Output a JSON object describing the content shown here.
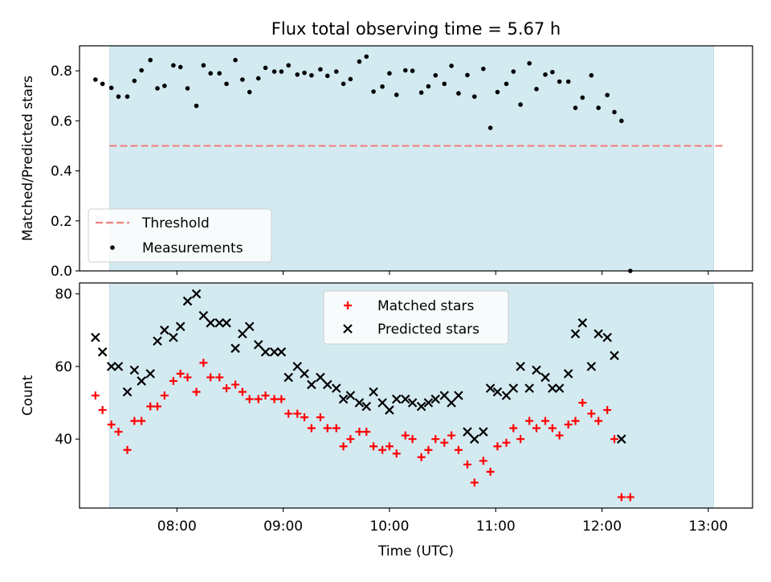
{
  "figure": {
    "title": "Flux total observing time = 5.67 h"
  },
  "colors": {
    "observing_band": "#d4eaf1",
    "threshold": "#f08080",
    "measurements": "#000000",
    "matched": "#ff0000",
    "predicted": "#000000"
  },
  "chart_data": [
    {
      "type": "scatter",
      "xlabel": "",
      "ylabel": "Matched/Predicted stars",
      "ylim": [
        0,
        0.9
      ],
      "yticks": [
        "0.0",
        "0.2",
        "0.4",
        "0.6",
        "0.8"
      ],
      "grid": false,
      "legend_position": "lower-left",
      "observing_window": [
        "07:22",
        "13:03"
      ],
      "threshold": {
        "name": "Threshold",
        "value": 0.5,
        "x_range": [
          "07:22",
          "13:08"
        ]
      },
      "series": [
        {
          "name": "Measurements",
          "marker": "dot",
          "points": [
            [
              "07:14",
              0.765
            ],
            [
              "07:18",
              0.748
            ],
            [
              "07:23",
              0.732
            ],
            [
              "07:27",
              0.697
            ],
            [
              "07:32",
              0.697
            ],
            [
              "07:36",
              0.76
            ],
            [
              "07:40",
              0.802
            ],
            [
              "07:45",
              0.843
            ],
            [
              "07:49",
              0.73
            ],
            [
              "07:53",
              0.74
            ],
            [
              "07:58",
              0.822
            ],
            [
              "08:02",
              0.815
            ],
            [
              "08:06",
              0.73
            ],
            [
              "08:11",
              0.66
            ],
            [
              "08:15",
              0.822
            ],
            [
              "08:19",
              0.79
            ],
            [
              "08:24",
              0.79
            ],
            [
              "08:28",
              0.748
            ],
            [
              "08:33",
              0.843
            ],
            [
              "08:37",
              0.765
            ],
            [
              "08:41",
              0.715
            ],
            [
              "08:46",
              0.77
            ],
            [
              "08:50",
              0.812
            ],
            [
              "08:55",
              0.797
            ],
            [
              "08:59",
              0.797
            ],
            [
              "09:03",
              0.822
            ],
            [
              "09:08",
              0.785
            ],
            [
              "09:12",
              0.792
            ],
            [
              "09:16",
              0.782
            ],
            [
              "09:21",
              0.806
            ],
            [
              "09:25",
              0.78
            ],
            [
              "09:30",
              0.797
            ],
            [
              "09:34",
              0.748
            ],
            [
              "09:38",
              0.767
            ],
            [
              "09:43",
              0.837
            ],
            [
              "09:47",
              0.857
            ],
            [
              "09:51",
              0.717
            ],
            [
              "09:56",
              0.737
            ],
            [
              "10:00",
              0.79
            ],
            [
              "10:04",
              0.704
            ],
            [
              "10:09",
              0.802
            ],
            [
              "10:13",
              0.8
            ],
            [
              "10:18",
              0.713
            ],
            [
              "10:22",
              0.738
            ],
            [
              "10:26",
              0.782
            ],
            [
              "10:31",
              0.748
            ],
            [
              "10:35",
              0.82
            ],
            [
              "10:39",
              0.71
            ],
            [
              "10:44",
              0.783
            ],
            [
              "10:48",
              0.697
            ],
            [
              "10:53",
              0.808
            ],
            [
              "10:57",
              0.572
            ],
            [
              "11:01",
              0.715
            ],
            [
              "11:06",
              0.748
            ],
            [
              "11:10",
              0.797
            ],
            [
              "11:14",
              0.665
            ],
            [
              "11:19",
              0.83
            ],
            [
              "11:23",
              0.727
            ],
            [
              "11:28",
              0.785
            ],
            [
              "11:32",
              0.795
            ],
            [
              "11:36",
              0.757
            ],
            [
              "11:41",
              0.757
            ],
            [
              "11:45",
              0.652
            ],
            [
              "11:49",
              0.693
            ],
            [
              "11:54",
              0.782
            ],
            [
              "11:58",
              0.652
            ],
            [
              "12:03",
              0.703
            ],
            [
              "12:07",
              0.635
            ],
            [
              "12:11",
              0.6
            ],
            [
              "12:16",
              0.0
            ]
          ]
        }
      ]
    },
    {
      "type": "scatter",
      "xlabel": "Time (UTC)",
      "ylabel": "Count",
      "ylim": [
        21,
        83
      ],
      "yticks": [
        "40",
        "60",
        "80"
      ],
      "xticks": [
        "08:00",
        "09:00",
        "10:00",
        "11:00",
        "12:00",
        "13:00"
      ],
      "xlim": [
        "07:05",
        "13:25"
      ],
      "grid": false,
      "legend_position": "upper-center",
      "observing_window": [
        "07:22",
        "13:03"
      ],
      "series": [
        {
          "name": "Matched stars",
          "marker": "plus",
          "points": [
            [
              "07:14",
              52
            ],
            [
              "07:18",
              48
            ],
            [
              "07:23",
              44
            ],
            [
              "07:27",
              42
            ],
            [
              "07:32",
              37
            ],
            [
              "07:36",
              45
            ],
            [
              "07:40",
              45
            ],
            [
              "07:45",
              49
            ],
            [
              "07:49",
              49
            ],
            [
              "07:53",
              52
            ],
            [
              "07:58",
              56
            ],
            [
              "08:02",
              58
            ],
            [
              "08:06",
              57
            ],
            [
              "08:11",
              53
            ],
            [
              "08:15",
              61
            ],
            [
              "08:19",
              57
            ],
            [
              "08:24",
              57
            ],
            [
              "08:28",
              54
            ],
            [
              "08:33",
              55
            ],
            [
              "08:37",
              53
            ],
            [
              "08:41",
              51
            ],
            [
              "08:46",
              51
            ],
            [
              "08:50",
              52
            ],
            [
              "08:55",
              51
            ],
            [
              "08:59",
              51
            ],
            [
              "09:03",
              47
            ],
            [
              "09:08",
              47
            ],
            [
              "09:12",
              46
            ],
            [
              "09:16",
              43
            ],
            [
              "09:21",
              46
            ],
            [
              "09:25",
              43
            ],
            [
              "09:30",
              43
            ],
            [
              "09:34",
              38
            ],
            [
              "09:38",
              40
            ],
            [
              "09:43",
              42
            ],
            [
              "09:47",
              42
            ],
            [
              "09:51",
              38
            ],
            [
              "09:56",
              37
            ],
            [
              "10:00",
              38
            ],
            [
              "10:04",
              36
            ],
            [
              "10:09",
              41
            ],
            [
              "10:13",
              40
            ],
            [
              "10:18",
              35
            ],
            [
              "10:22",
              37
            ],
            [
              "10:26",
              40
            ],
            [
              "10:31",
              39
            ],
            [
              "10:35",
              41
            ],
            [
              "10:39",
              37
            ],
            [
              "10:44",
              33
            ],
            [
              "10:48",
              28
            ],
            [
              "10:53",
              34
            ],
            [
              "10:57",
              31
            ],
            [
              "11:01",
              38
            ],
            [
              "11:06",
              39
            ],
            [
              "11:10",
              43
            ],
            [
              "11:14",
              40
            ],
            [
              "11:19",
              45
            ],
            [
              "11:23",
              43
            ],
            [
              "11:28",
              45
            ],
            [
              "11:32",
              43
            ],
            [
              "11:36",
              41
            ],
            [
              "11:41",
              44
            ],
            [
              "11:45",
              45
            ],
            [
              "11:49",
              50
            ],
            [
              "11:54",
              47
            ],
            [
              "11:58",
              45
            ],
            [
              "12:03",
              48
            ],
            [
              "12:07",
              40
            ],
            [
              "12:11",
              24
            ],
            [
              "12:16",
              24
            ]
          ]
        },
        {
          "name": "Predicted stars",
          "marker": "x",
          "points": [
            [
              "07:14",
              68
            ],
            [
              "07:18",
              64
            ],
            [
              "07:23",
              60
            ],
            [
              "07:27",
              60
            ],
            [
              "07:32",
              53
            ],
            [
              "07:36",
              59
            ],
            [
              "07:40",
              56
            ],
            [
              "07:45",
              58
            ],
            [
              "07:49",
              67
            ],
            [
              "07:53",
              70
            ],
            [
              "07:58",
              68
            ],
            [
              "08:02",
              71
            ],
            [
              "08:06",
              78
            ],
            [
              "08:11",
              80
            ],
            [
              "08:15",
              74
            ],
            [
              "08:19",
              72
            ],
            [
              "08:24",
              72
            ],
            [
              "08:28",
              72
            ],
            [
              "08:33",
              65
            ],
            [
              "08:37",
              69
            ],
            [
              "08:41",
              71
            ],
            [
              "08:46",
              66
            ],
            [
              "08:50",
              64
            ],
            [
              "08:55",
              64
            ],
            [
              "08:59",
              64
            ],
            [
              "09:03",
              57
            ],
            [
              "09:08",
              60
            ],
            [
              "09:12",
              58
            ],
            [
              "09:16",
              55
            ],
            [
              "09:21",
              57
            ],
            [
              "09:25",
              55
            ],
            [
              "09:30",
              54
            ],
            [
              "09:34",
              51
            ],
            [
              "09:38",
              52
            ],
            [
              "09:43",
              50
            ],
            [
              "09:47",
              49
            ],
            [
              "09:51",
              53
            ],
            [
              "09:56",
              50
            ],
            [
              "10:00",
              48
            ],
            [
              "10:04",
              51
            ],
            [
              "10:09",
              51
            ],
            [
              "10:13",
              50
            ],
            [
              "10:18",
              49
            ],
            [
              "10:22",
              50
            ],
            [
              "10:26",
              51
            ],
            [
              "10:31",
              52
            ],
            [
              "10:35",
              50
            ],
            [
              "10:39",
              52
            ],
            [
              "10:44",
              42
            ],
            [
              "10:48",
              40
            ],
            [
              "10:53",
              42
            ],
            [
              "10:57",
              54
            ],
            [
              "11:01",
              53
            ],
            [
              "11:06",
              52
            ],
            [
              "11:10",
              54
            ],
            [
              "11:14",
              60
            ],
            [
              "11:19",
              54
            ],
            [
              "11:23",
              59
            ],
            [
              "11:28",
              57
            ],
            [
              "11:32",
              54
            ],
            [
              "11:36",
              54
            ],
            [
              "11:41",
              58
            ],
            [
              "11:45",
              69
            ],
            [
              "11:49",
              72
            ],
            [
              "11:54",
              60
            ],
            [
              "11:58",
              69
            ],
            [
              "12:03",
              68
            ],
            [
              "12:07",
              63
            ],
            [
              "12:11",
              40
            ]
          ]
        }
      ]
    }
  ]
}
